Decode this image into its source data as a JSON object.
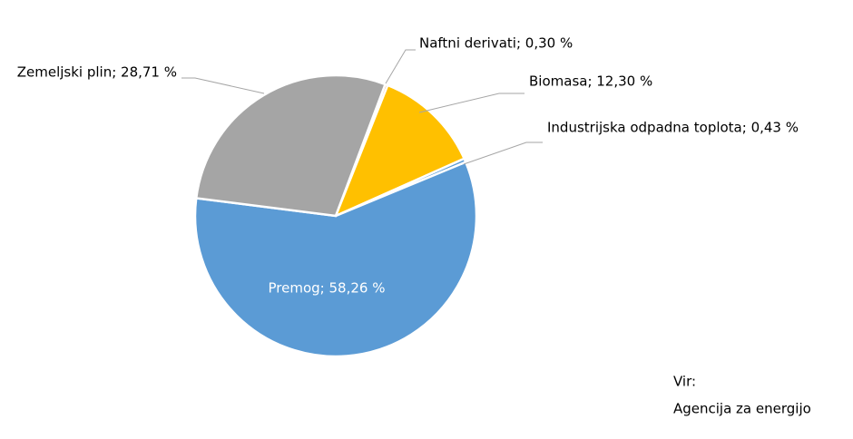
{
  "chart_data": {
    "type": "pie",
    "categories": [
      "Naftni derivati; 0,30 %",
      "Biomasa; 12,30 %",
      "Industrijska odpadna toplota; 0,43 %",
      "Premog; 58,26 %",
      "Zemeljski plin; 28,71 %"
    ],
    "values": [
      0.3,
      12.3,
      0.43,
      58.26,
      28.71
    ],
    "colors": [
      "#ed7d31",
      "#ffc000",
      "#5b9bd5",
      "#5b9bd5",
      "#a5a5a5"
    ],
    "annotations": [
      "Vir:",
      "Agencija za energijo"
    ]
  }
}
